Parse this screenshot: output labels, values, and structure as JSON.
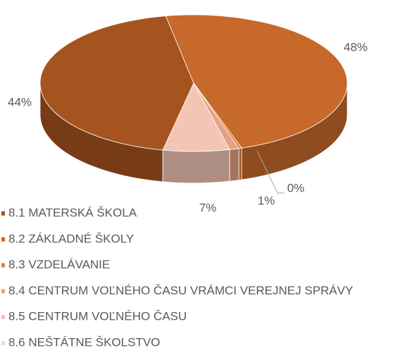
{
  "chart_data": {
    "type": "pie3d",
    "categories": [
      "8.1 MATERSKÁ ŠKOLA",
      "8.2 ZÁKLADNÉ ŠKOLY",
      "8.3 VZDELÁVANIE",
      "8.4 CENTRUM VOĽNÉHO ČASU VRÁMCI VEREJNEJ SPRÁVY",
      "8.5 CENTRUM VOĽNÉHO ČASU",
      "8.6 NEŠTÁTNE ŠKOLSTVO"
    ],
    "values": [
      44,
      48,
      0.3,
      1,
      7,
      0
    ],
    "value_labels": [
      "44%",
      "48%",
      "0%",
      "1%",
      "7%",
      null
    ],
    "colors": [
      "#a5541f",
      "#c6692a",
      "#d7813f",
      "#e8a083",
      "#f2c5b5",
      "#f6d8cc"
    ],
    "legend": "bottom-left"
  }
}
